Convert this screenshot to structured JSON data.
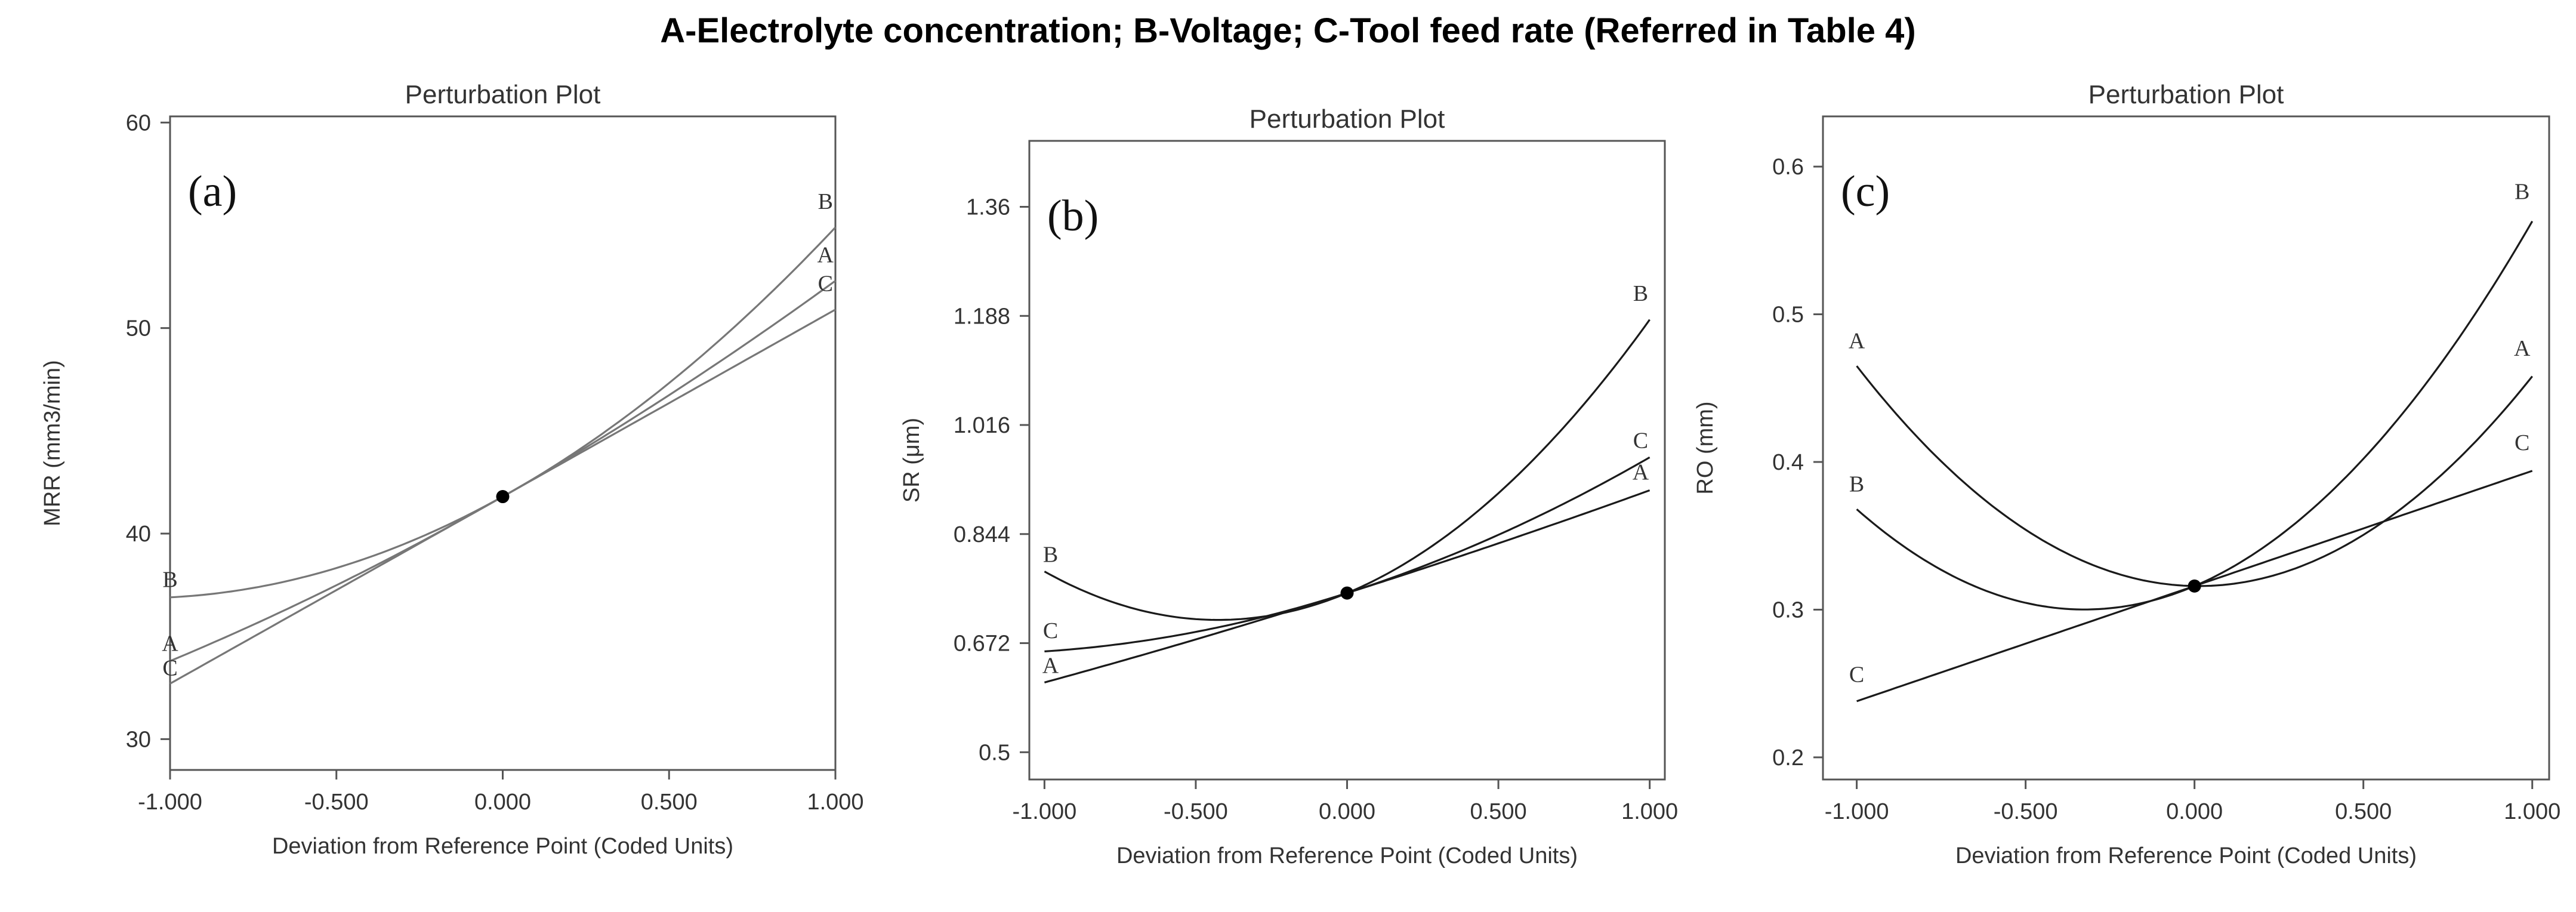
{
  "figure_title": "A-Electrolyte concentration;  B-Voltage;  C-Tool feed rate (Referred in Table 4)",
  "chart_data": [
    {
      "type": "line",
      "panel_label": "(a)",
      "title": "Perturbation Plot",
      "xlabel": "Deviation from Reference Point (Coded Units)",
      "ylabel": "MRR (mm3/min)",
      "xlim": [
        -1,
        1
      ],
      "ylim": [
        28.5,
        60.3
      ],
      "x_ticks": [
        -1,
        -0.5,
        0,
        0.5,
        1
      ],
      "x_tick_labels": [
        "-1.000",
        "-0.500",
        "0.000",
        "0.500",
        "1.000"
      ],
      "y_ticks": [
        30,
        40,
        50,
        60
      ],
      "y_tick_labels": [
        "30",
        "40",
        "50",
        "60"
      ],
      "line_color": "#777777",
      "reference_point": [
        0,
        41.8
      ],
      "series": [
        {
          "name": "B",
          "start": 36.9,
          "center": 41.8,
          "end": 54.9
        },
        {
          "name": "A",
          "start": 33.8,
          "center": 41.8,
          "end": 52.3
        },
        {
          "name": "C",
          "start": 32.7,
          "center": 41.8,
          "end": 50.9
        }
      ],
      "labels": [
        {
          "text": "B",
          "x": -1,
          "y": 37.4
        },
        {
          "text": "A",
          "x": -1,
          "y": 34.3
        },
        {
          "text": "C",
          "x": -1,
          "y": 33.1
        },
        {
          "text": "B",
          "x": 0.97,
          "y": 55.8
        },
        {
          "text": "A",
          "x": 0.97,
          "y": 53.2
        },
        {
          "text": "C",
          "x": 0.97,
          "y": 51.8
        }
      ]
    },
    {
      "type": "line",
      "panel_label": "(b)",
      "title": "Perturbation Plot",
      "xlabel": "Deviation from Reference Point (Coded Units)",
      "ylabel": "SR (μm)",
      "xlim": [
        -1.05,
        1.05
      ],
      "ylim": [
        0.457,
        1.464
      ],
      "x_ticks": [
        -1,
        -0.5,
        0,
        0.5,
        1
      ],
      "x_tick_labels": [
        "-1.000",
        "-0.500",
        "0.000",
        "0.500",
        "1.000"
      ],
      "y_ticks": [
        0.5,
        0.672,
        0.844,
        1.016,
        1.188,
        1.36
      ],
      "y_tick_labels": [
        "0.5",
        "0.672",
        "0.844",
        "1.016",
        "1.188",
        "1.36"
      ],
      "line_color": "#1a1a1a",
      "reference_point": [
        0,
        0.751
      ],
      "series": [
        {
          "name": "B",
          "start": 0.785,
          "center": 0.751,
          "end": 1.182
        },
        {
          "name": "C",
          "start": 0.659,
          "center": 0.751,
          "end": 0.965
        },
        {
          "name": "A",
          "start": 0.61,
          "center": 0.751,
          "end": 0.913
        }
      ],
      "labels": [
        {
          "text": "B",
          "x": -0.98,
          "y": 0.8
        },
        {
          "text": "C",
          "x": -0.98,
          "y": 0.68
        },
        {
          "text": "A",
          "x": -0.98,
          "y": 0.625
        },
        {
          "text": "B",
          "x": 0.97,
          "y": 1.212
        },
        {
          "text": "C",
          "x": 0.97,
          "y": 0.98
        },
        {
          "text": "A",
          "x": 0.97,
          "y": 0.93
        }
      ]
    },
    {
      "type": "line",
      "panel_label": "(c)",
      "title": "Perturbation Plot",
      "xlabel": "Deviation from Reference Point (Coded Units)",
      "ylabel": "RO (mm)",
      "xlim": [
        -1.1,
        1.05
      ],
      "ylim": [
        0.185,
        0.634
      ],
      "x_ticks": [
        -1,
        -0.5,
        0,
        0.5,
        1
      ],
      "x_tick_labels": [
        "-1.000",
        "-0.500",
        "0.000",
        "0.500",
        "1.000"
      ],
      "y_ticks": [
        0.2,
        0.3,
        0.4,
        0.5,
        0.6
      ],
      "y_tick_labels": [
        "0.2",
        "0.3",
        "0.4",
        "0.5",
        "0.6"
      ],
      "line_color": "#1a1a1a",
      "reference_point": [
        0,
        0.316
      ],
      "series": [
        {
          "name": "A",
          "start": 0.465,
          "center": 0.316,
          "end": 0.458
        },
        {
          "name": "B",
          "start": 0.368,
          "center": 0.316,
          "end": 0.563
        },
        {
          "name": "C",
          "start": 0.238,
          "center": 0.316,
          "end": 0.394
        }
      ],
      "labels": [
        {
          "text": "A",
          "x": -1,
          "y": 0.477
        },
        {
          "text": "B",
          "x": -1,
          "y": 0.38
        },
        {
          "text": "C",
          "x": -1,
          "y": 0.251
        },
        {
          "text": "B",
          "x": 0.97,
          "y": 0.578
        },
        {
          "text": "A",
          "x": 0.97,
          "y": 0.472
        },
        {
          "text": "C",
          "x": 0.97,
          "y": 0.408
        }
      ]
    }
  ]
}
